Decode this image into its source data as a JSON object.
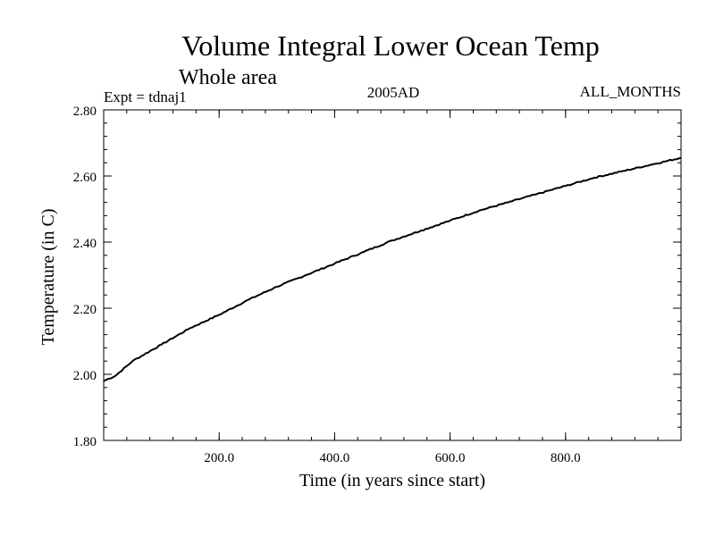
{
  "chart_data": {
    "type": "line",
    "title": "Volume Integral Lower Ocean Temp",
    "subtitle": "Whole area",
    "experiment": "Expt = tdnaj1",
    "date_label": "2005AD",
    "months_label": "ALL_MONTHS",
    "xlabel": "Time (in years since start)",
    "ylabel": "Temperature (in C)",
    "xlim": [
      0,
      1000
    ],
    "ylim": [
      1.8,
      2.8
    ],
    "x_ticks": [
      {
        "value": 200,
        "label": "200.0"
      },
      {
        "value": 400,
        "label": "400.0"
      },
      {
        "value": 600,
        "label": "600.0"
      },
      {
        "value": 800,
        "label": "800.0"
      }
    ],
    "y_ticks": [
      {
        "value": 1.8,
        "label": "1.80"
      },
      {
        "value": 2.0,
        "label": "2.00"
      },
      {
        "value": 2.2,
        "label": "2.20"
      },
      {
        "value": 2.4,
        "label": "2.40"
      },
      {
        "value": 2.6,
        "label": "2.60"
      },
      {
        "value": 2.8,
        "label": "2.80"
      }
    ],
    "x_minor_step": 40,
    "y_minor_step": 0.04,
    "grid": false,
    "series": [
      {
        "name": "Lower Ocean Temp",
        "x": [
          0,
          20,
          50,
          100,
          150,
          200,
          250,
          300,
          350,
          400,
          450,
          500,
          550,
          600,
          650,
          700,
          750,
          800,
          850,
          900,
          950,
          1000
        ],
        "y": [
          1.98,
          1.995,
          2.04,
          2.09,
          2.14,
          2.18,
          2.225,
          2.265,
          2.3,
          2.335,
          2.37,
          2.405,
          2.435,
          2.465,
          2.495,
          2.52,
          2.545,
          2.57,
          2.595,
          2.615,
          2.635,
          2.655
        ]
      }
    ]
  }
}
